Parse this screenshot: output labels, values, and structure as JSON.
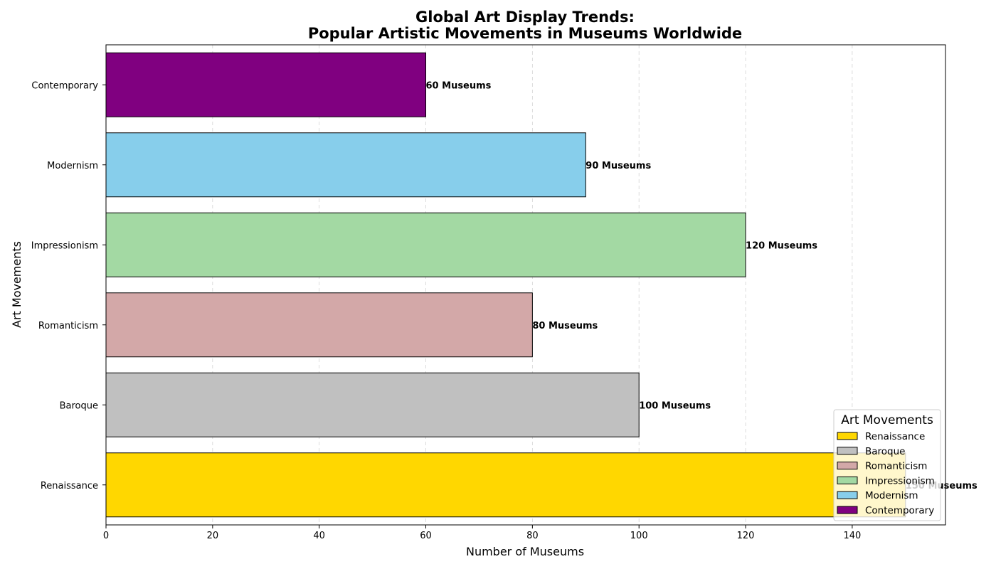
{
  "chart_data": {
    "type": "bar",
    "orientation": "horizontal",
    "title_lines": [
      "Global Art Display Trends:",
      "Popular Artistic Movements in Museums Worldwide"
    ],
    "xlabel": "Number of Museums",
    "ylabel": "Art Movements",
    "categories": [
      "Renaissance",
      "Baroque",
      "Romanticism",
      "Impressionism",
      "Modernism",
      "Contemporary"
    ],
    "values": [
      150,
      100,
      80,
      120,
      90,
      60
    ],
    "data_labels": [
      "150 Museums",
      "100 Museums",
      "80 Museums",
      "120 Museums",
      "90 Museums",
      "60 Museums"
    ],
    "colors": [
      "#FFD700",
      "#C0C0C0",
      "#D3A8A8",
      "#A3D9A3",
      "#87CEEB",
      "#800080"
    ],
    "x_ticks": [
      0,
      20,
      40,
      60,
      80,
      100,
      120,
      140
    ],
    "xlim": [
      0,
      157.5
    ],
    "grid": "x-dashed",
    "legend": {
      "title": "Art Movements",
      "placement": "lower-right",
      "entries": [
        "Renaissance",
        "Baroque",
        "Romanticism",
        "Impressionism",
        "Modernism",
        "Contemporary"
      ]
    }
  }
}
